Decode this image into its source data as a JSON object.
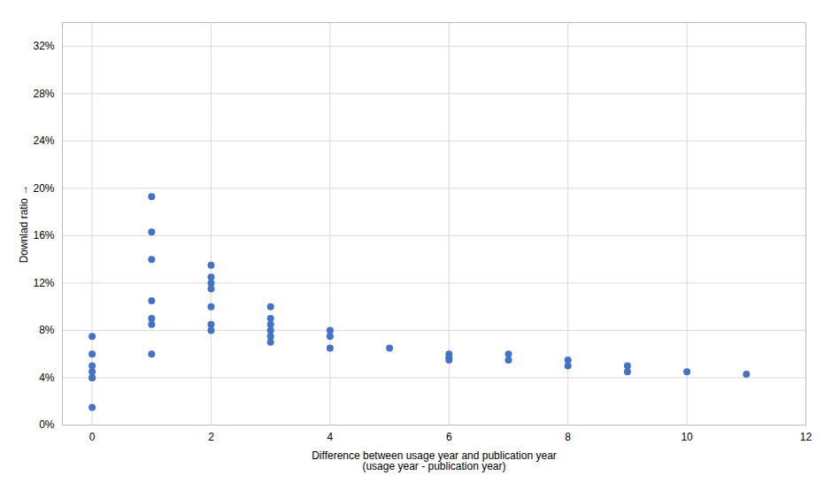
{
  "chart_data": {
    "type": "scatter",
    "x": [
      0,
      0,
      0,
      0,
      0,
      0,
      0,
      1,
      1,
      1,
      1,
      1,
      1,
      1,
      2,
      2,
      2,
      2,
      2,
      2,
      2,
      3,
      3,
      3,
      3,
      3,
      3,
      4,
      4,
      4,
      5,
      6,
      6,
      6,
      7,
      7,
      8,
      8,
      9,
      9,
      10,
      11
    ],
    "values": [
      0.075,
      0.06,
      0.05,
      0.045,
      0.04,
      0.04,
      0.015,
      0.193,
      0.163,
      0.14,
      0.105,
      0.09,
      0.085,
      0.06,
      0.135,
      0.125,
      0.12,
      0.115,
      0.1,
      0.085,
      0.08,
      0.1,
      0.09,
      0.085,
      0.08,
      0.075,
      0.07,
      0.08,
      0.075,
      0.065,
      0.065,
      0.06,
      0.057,
      0.055,
      0.06,
      0.055,
      0.055,
      0.05,
      0.05,
      0.045,
      0.045,
      0.043
    ],
    "color": "#4472C4",
    "marker": "circle",
    "xlabel": "Difference between usage year and publication year\n(usage year - publication year)",
    "ylabel": "Downlad ratio",
    "xlim": [
      -0.5,
      12
    ],
    "ylim": [
      0,
      0.34
    ],
    "xticks": [
      0,
      2,
      4,
      6,
      8,
      10,
      12
    ],
    "yticks": [
      {
        "value": 0.0,
        "label": "0%"
      },
      {
        "value": 0.04,
        "label": "4%"
      },
      {
        "value": 0.08,
        "label": "8%"
      },
      {
        "value": 0.12,
        "label": "12%"
      },
      {
        "value": 0.16,
        "label": "16%"
      },
      {
        "value": 0.2,
        "label": "20%"
      },
      {
        "value": 0.24,
        "label": "24%"
      },
      {
        "value": 0.28,
        "label": "28%"
      },
      {
        "value": 0.32,
        "label": "32%"
      }
    ],
    "grid": true
  }
}
